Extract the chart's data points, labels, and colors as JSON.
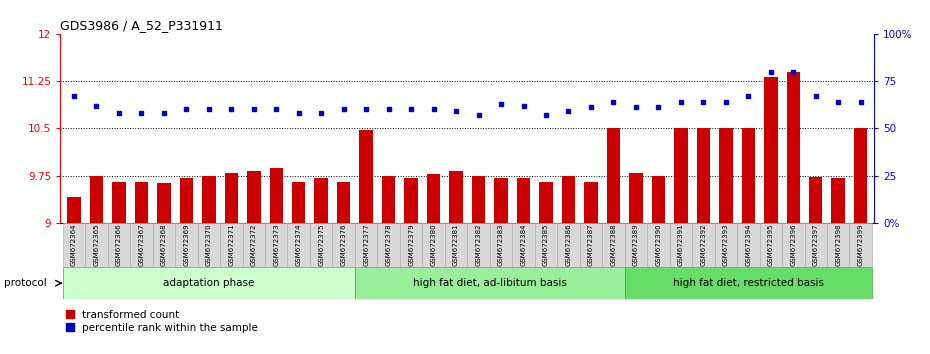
{
  "title": "GDS3986 / A_52_P331911",
  "samples": [
    "GSM672364",
    "GSM672365",
    "GSM672366",
    "GSM672367",
    "GSM672368",
    "GSM672369",
    "GSM672370",
    "GSM672371",
    "GSM672372",
    "GSM672373",
    "GSM672374",
    "GSM672375",
    "GSM672376",
    "GSM672377",
    "GSM672378",
    "GSM672379",
    "GSM672380",
    "GSM672381",
    "GSM672382",
    "GSM672383",
    "GSM672384",
    "GSM672385",
    "GSM672386",
    "GSM672387",
    "GSM672388",
    "GSM672389",
    "GSM672390",
    "GSM672391",
    "GSM672392",
    "GSM672393",
    "GSM672394",
    "GSM672395",
    "GSM672396",
    "GSM672397",
    "GSM672398",
    "GSM672399"
  ],
  "bar_values": [
    9.42,
    9.75,
    9.65,
    9.65,
    9.63,
    9.72,
    9.75,
    9.8,
    9.83,
    9.87,
    9.65,
    9.72,
    9.65,
    10.47,
    9.75,
    9.72,
    9.78,
    9.82,
    9.75,
    9.72,
    9.72,
    9.65,
    9.75,
    9.65,
    10.5,
    9.8,
    9.75,
    10.5,
    10.5,
    10.5,
    10.5,
    11.32,
    11.4,
    9.73,
    9.72,
    10.5
  ],
  "blue_values": [
    67,
    62,
    58,
    58,
    58,
    60,
    60,
    60,
    60,
    60,
    58,
    58,
    60,
    60,
    60,
    60,
    60,
    59,
    57,
    63,
    62,
    57,
    59,
    61,
    64,
    61,
    61,
    64,
    64,
    64,
    67,
    80,
    80,
    67,
    64,
    64
  ],
  "ylim_left": [
    9.0,
    12.0
  ],
  "ylim_right": [
    0,
    100
  ],
  "yticks_left": [
    9.0,
    9.75,
    10.5,
    11.25,
    12.0
  ],
  "yticks_right": [
    0,
    25,
    50,
    75,
    100
  ],
  "ytick_labels_left": [
    "9",
    "9.75",
    "10.5",
    "11.25",
    "12"
  ],
  "ytick_labels_right": [
    "0%",
    "25",
    "50",
    "75",
    "100%"
  ],
  "hlines": [
    9.75,
    10.5,
    11.25
  ],
  "bar_color": "#cc0000",
  "dot_color": "#0000cc",
  "protocol_groups": [
    {
      "label": "adaptation phase",
      "start": 0,
      "end": 13,
      "color": "#ccffcc"
    },
    {
      "label": "high fat diet, ad-libitum basis",
      "start": 13,
      "end": 25,
      "color": "#99ee99"
    },
    {
      "label": "high fat diet, restricted basis",
      "start": 25,
      "end": 36,
      "color": "#66dd66"
    }
  ],
  "protocol_label": "protocol",
  "legend_items": [
    {
      "label": "transformed count",
      "color": "#cc0000"
    },
    {
      "label": "percentile rank within the sample",
      "color": "#0000cc"
    }
  ],
  "bg_color": "#ffffff",
  "tick_bg_color": "#d8d8d8"
}
